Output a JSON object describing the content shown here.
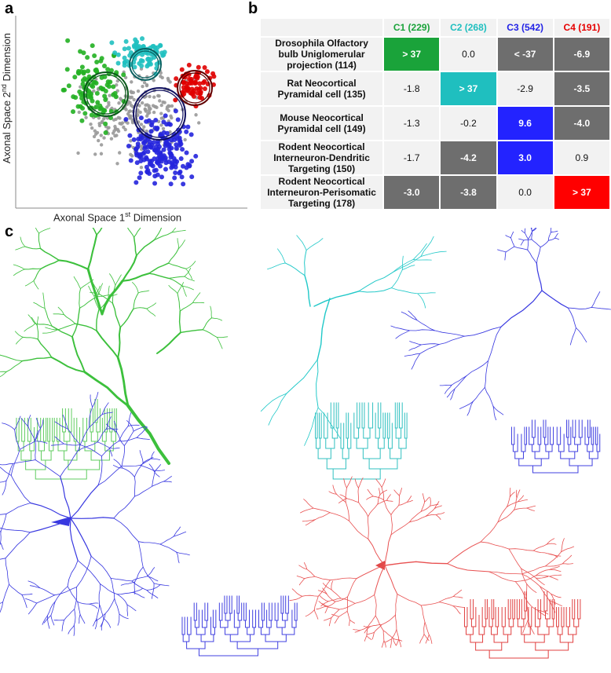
{
  "panels": {
    "a": "a",
    "b": "b",
    "c": "c"
  },
  "scatter": {
    "y_label": {
      "text": "Axonal Space 2",
      "sup": "nd",
      "rest": " Dimension"
    },
    "x_label": {
      "text": "Axonal Space 1",
      "sup": "st",
      "rest": " Dimension"
    }
  },
  "table": {
    "columns": [
      {
        "label": "C1 (229)",
        "color": "#1aa33a"
      },
      {
        "label": "C2 (268)",
        "color": "#1fbfbf"
      },
      {
        "label": "C3 (542)",
        "color": "#2323e6"
      },
      {
        "label": "C4 (191)",
        "color": "#e60000"
      }
    ],
    "rows": [
      {
        "label": "Drosophila Olfactory bulb Uniglomerular projection (114)",
        "cells": [
          "> 37",
          "0.0",
          "< -37",
          "-6.9"
        ],
        "colors": [
          "#1aa33a",
          "#f2f2f2",
          "#6e6e6e",
          "#6e6e6e"
        ]
      },
      {
        "label": "Rat Neocortical Pyramidal cell (135)",
        "cells": [
          "-1.8",
          "> 37",
          "-2.9",
          "-3.5"
        ],
        "colors": [
          "#f2f2f2",
          "#1fbfbf",
          "#f2f2f2",
          "#6e6e6e"
        ]
      },
      {
        "label": "Mouse Neocortical Pyramidal cell (149)",
        "cells": [
          "-1.3",
          "-0.2",
          "9.6",
          "-4.0"
        ],
        "colors": [
          "#f2f2f2",
          "#f2f2f2",
          "#2323ff",
          "#6e6e6e"
        ]
      },
      {
        "label": "Rodent Neocortical Interneuron-Dendritic Targeting (150)",
        "cells": [
          "-1.7",
          "-4.2",
          "3.0",
          "0.9"
        ],
        "colors": [
          "#f2f2f2",
          "#6e6e6e",
          "#2323ff",
          "#f2f2f2"
        ]
      },
      {
        "label": "Rodent Neocortical Interneuron-Perisomatic Targeting (178)",
        "cells": [
          "-3.0",
          "-3.8",
          "0.0",
          "> 37"
        ],
        "colors": [
          "#6e6e6e",
          "#6e6e6e",
          "#f2f2f2",
          "#ff0000"
        ]
      }
    ]
  }
}
